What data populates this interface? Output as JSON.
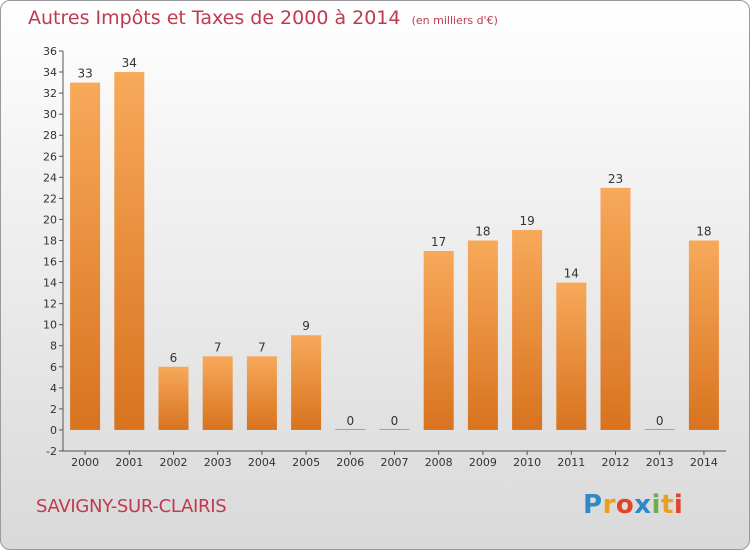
{
  "header": {
    "title": "Autres Impôts et Taxes de 2000 à 2014",
    "unit_note": "(en milliers d'€)"
  },
  "footer": {
    "commune": "SAVIGNY-SUR-CLAIRIS",
    "logo_letters": [
      "P",
      "r",
      "o",
      "x",
      "i",
      "t",
      "i"
    ],
    "logo_colors": [
      "#2f88c8",
      "#e8a020",
      "#e0442a",
      "#2f88c8",
      "#6ab04c",
      "#e8a020",
      "#e0442a"
    ]
  },
  "colors": {
    "bar_top": "#f7a95a",
    "bar_bottom": "#d8731f",
    "axis": "#555555",
    "title": "#c0394f"
  },
  "chart_data": {
    "type": "bar",
    "title": "Autres Impôts et Taxes de 2000 à 2014",
    "subtitle": "(en milliers d'€)",
    "xlabel": "",
    "ylabel": "",
    "ylim": [
      -2,
      36
    ],
    "yticks": [
      -2,
      0,
      2,
      4,
      6,
      8,
      10,
      12,
      14,
      16,
      18,
      20,
      22,
      24,
      26,
      28,
      30,
      32,
      34,
      36
    ],
    "grid": false,
    "categories": [
      "2000",
      "2001",
      "2002",
      "2003",
      "2004",
      "2005",
      "2006",
      "2007",
      "2008",
      "2009",
      "2010",
      "2011",
      "2012",
      "2013",
      "2014"
    ],
    "values": [
      33,
      34,
      6,
      7,
      7,
      9,
      0,
      0,
      17,
      18,
      19,
      14,
      23,
      0,
      18
    ]
  }
}
